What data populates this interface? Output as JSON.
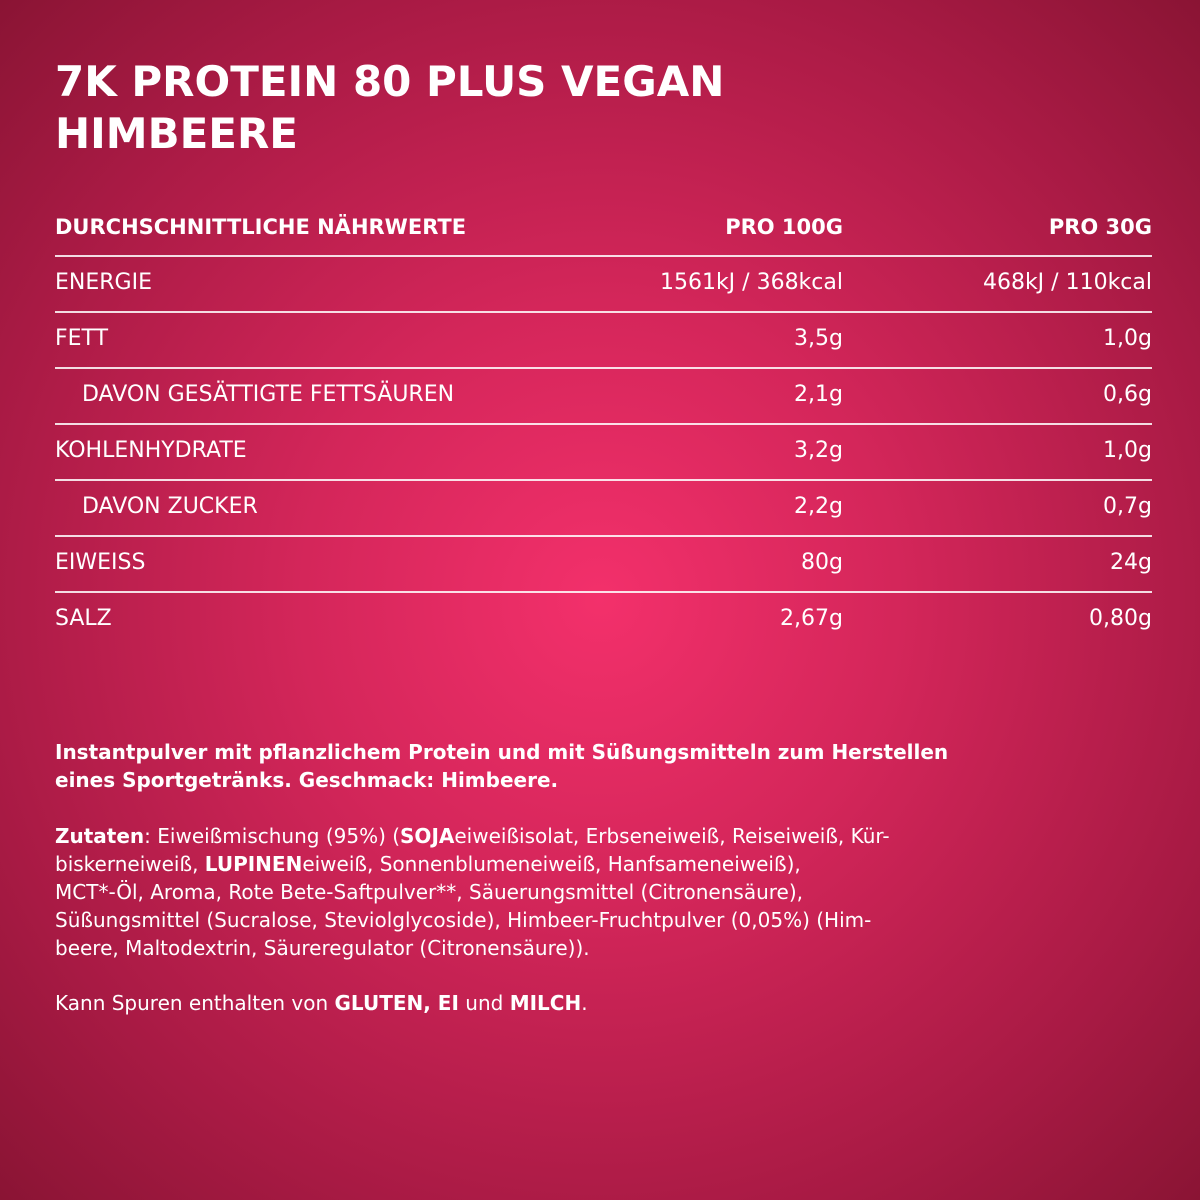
{
  "title_lines": [
    "7K PROTEIN 80 PLUS VEGAN",
    "HIMBEERE"
  ],
  "table": {
    "header": [
      "DURCHSCHNITTLICHE NÄHRWERTE",
      "PRO 100G",
      "PRO 30G"
    ],
    "rows": [
      {
        "cells": [
          "ENERGIE",
          "1561kJ / 368kcal",
          "468kJ / 110kcal"
        ],
        "indent": false
      },
      {
        "cells": [
          "FETT",
          "3,5g",
          "1,0g"
        ],
        "indent": false
      },
      {
        "cells": [
          "DAVON GESÄTTIGTE FETTSÄUREN",
          "2,1g",
          "0,6g"
        ],
        "indent": true
      },
      {
        "cells": [
          "KOHLENHYDRATE",
          "3,2g",
          "1,0g"
        ],
        "indent": false
      },
      {
        "cells": [
          "DAVON ZUCKER",
          "2,2g",
          "0,7g"
        ],
        "indent": true
      },
      {
        "cells": [
          "EIWEISS",
          "80g",
          "24g"
        ],
        "indent": false
      },
      {
        "cells": [
          "SALZ",
          "2,67g",
          "0,80g"
        ],
        "indent": false
      }
    ]
  },
  "description_lines": [
    "Instantpulver mit pflanzlichem Protein und mit Süßungsmitteln zum Herstellen",
    "eines Sportgetränks. Geschmack: Himbeere."
  ],
  "ingredients_lines": [
    [
      {
        "text": "Zutaten",
        "bold": true
      },
      {
        "text": ": Eiweißmischung (95%) (",
        "bold": false
      },
      {
        "text": "SOJA",
        "bold": true
      },
      {
        "text": "eiweißisolat, Erbseneiweiß, Reiseiweiß, Kür-",
        "bold": false
      }
    ],
    [
      {
        "text": "biskerneiweiß, ",
        "bold": false
      },
      {
        "text": "LUPINEN",
        "bold": true
      },
      {
        "text": "eiweiß, Sonnenblumeneiweiß, Hanfsameneiweiß),",
        "bold": false
      }
    ],
    [
      {
        "text": "MCT*-Öl, Aroma, Rote Bete-Saftpulver**, Säuerungsmittel (Citronensäure),",
        "bold": false
      }
    ],
    [
      {
        "text": "Süßungsmittel (Sucralose, Steviolglycoside), Himbeer-Fruchtpulver (0,05%) (Him-",
        "bold": false
      }
    ],
    [
      {
        "text": "beere, Maltodextrin, Säureregulator (Citronensäure)).",
        "bold": false
      }
    ]
  ],
  "allergens": [
    {
      "text": "Kann Spuren enthalten von ",
      "bold": false
    },
    {
      "text": "GLUTEN, EI",
      "bold": true
    },
    {
      "text": " und ",
      "bold": false
    },
    {
      "text": "MILCH",
      "bold": true
    },
    {
      "text": ".",
      "bold": false
    }
  ]
}
